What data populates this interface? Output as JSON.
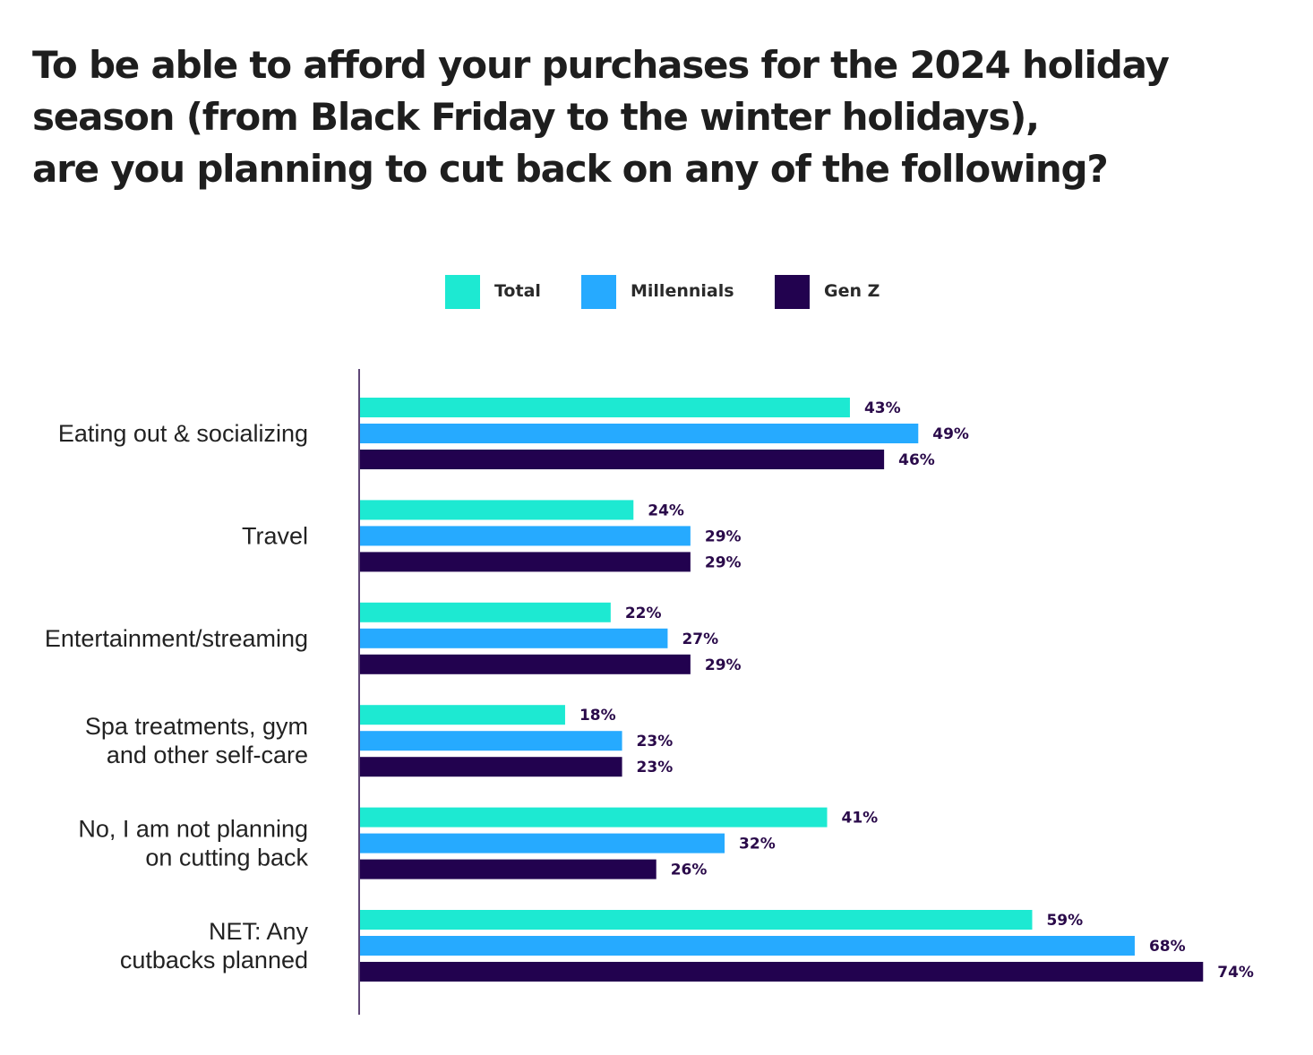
{
  "title_lines": [
    "To be able to afford your purchases for the 2024 holiday",
    "season (from Black Friday to the winter holidays),",
    "are you planning to cut back on any of the following?"
  ],
  "colors": {
    "total": "#1de9d2",
    "millennials": "#26aaff",
    "genz": "#22024f",
    "axis": "#2a0a4a",
    "value_text": "#2a0a4a"
  },
  "chart_data": {
    "type": "bar",
    "orientation": "horizontal",
    "title": "To be able to afford your purchases for the 2024 holiday season (from Black Friday to the winter holidays), are you planning to cut back on any of the following?",
    "categories": [
      [
        "Eating out & socializing"
      ],
      [
        "Travel"
      ],
      [
        "Entertainment/streaming"
      ],
      [
        "Spa treatments, gym",
        "and other self-care"
      ],
      [
        "No, I am not planning",
        "on cutting back"
      ],
      [
        "NET: Any",
        "cutbacks planned"
      ]
    ],
    "series": [
      {
        "name": "Total",
        "values": [
          43,
          24,
          22,
          18,
          41,
          59
        ],
        "labels": [
          "43%",
          "24%",
          "22%",
          "18%",
          "41%",
          "59%"
        ]
      },
      {
        "name": "Millennials",
        "values": [
          49,
          29,
          27,
          23,
          32,
          68
        ],
        "labels": [
          "49%",
          "29%",
          "27%",
          "23%",
          "32%",
          "68%"
        ]
      },
      {
        "name": "Gen Z",
        "values": [
          46,
          29,
          29,
          23,
          26,
          74
        ],
        "labels": [
          "46%",
          "29%",
          "29%",
          "23%",
          "26%",
          "74%"
        ]
      }
    ],
    "value_unit": "%",
    "xlim": [
      0,
      100
    ],
    "grid": false,
    "legend": "top-center"
  }
}
